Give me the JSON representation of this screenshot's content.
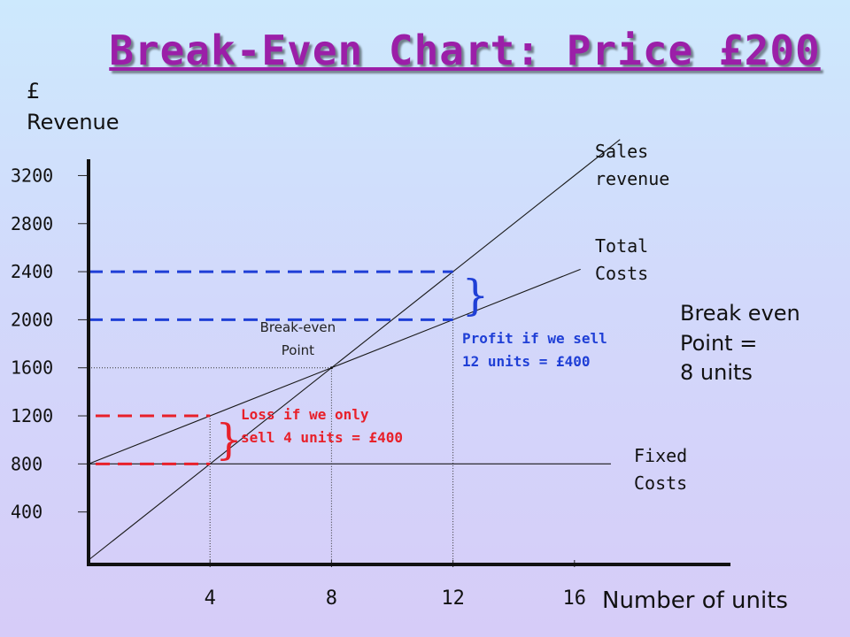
{
  "title": "Break-Even Chart: Price £200",
  "chart_data": {
    "type": "line",
    "ylabel": "£\nRevenue",
    "xlabel": "Number of units",
    "ylim": [
      0,
      3200
    ],
    "xlim": [
      0,
      20
    ],
    "y_ticks": [
      400,
      800,
      1200,
      1600,
      2000,
      2400,
      2800,
      3200
    ],
    "x_ticks": [
      4,
      8,
      12,
      16
    ],
    "series": [
      {
        "name": "Sales\nrevenue",
        "x": [
          0,
          20
        ],
        "y": [
          0,
          4000
        ],
        "color": "#1a1a1a"
      },
      {
        "name": "Total\nCosts",
        "x": [
          0,
          20
        ],
        "y": [
          800,
          2800
        ],
        "color": "#1a1a1a"
      },
      {
        "name": "Fixed\nCosts",
        "x": [
          0,
          20
        ],
        "y": [
          800,
          800
        ],
        "color": "#1a1a1a"
      }
    ],
    "break_even": {
      "x": 8,
      "y": 1600,
      "label": "Break-even\nPoint"
    },
    "profit": {
      "units": 12,
      "revenue": 2400,
      "cost": 2000,
      "label": "Profit if we sell\n12 units = £400",
      "color": "#1f3fd6"
    },
    "loss": {
      "units": 4,
      "revenue": 800,
      "cost": 1200,
      "label": "Loss if we only\nsell 4 units = £400",
      "color": "#e8202a"
    }
  },
  "note": "Break even\nPoint =\n8 units"
}
